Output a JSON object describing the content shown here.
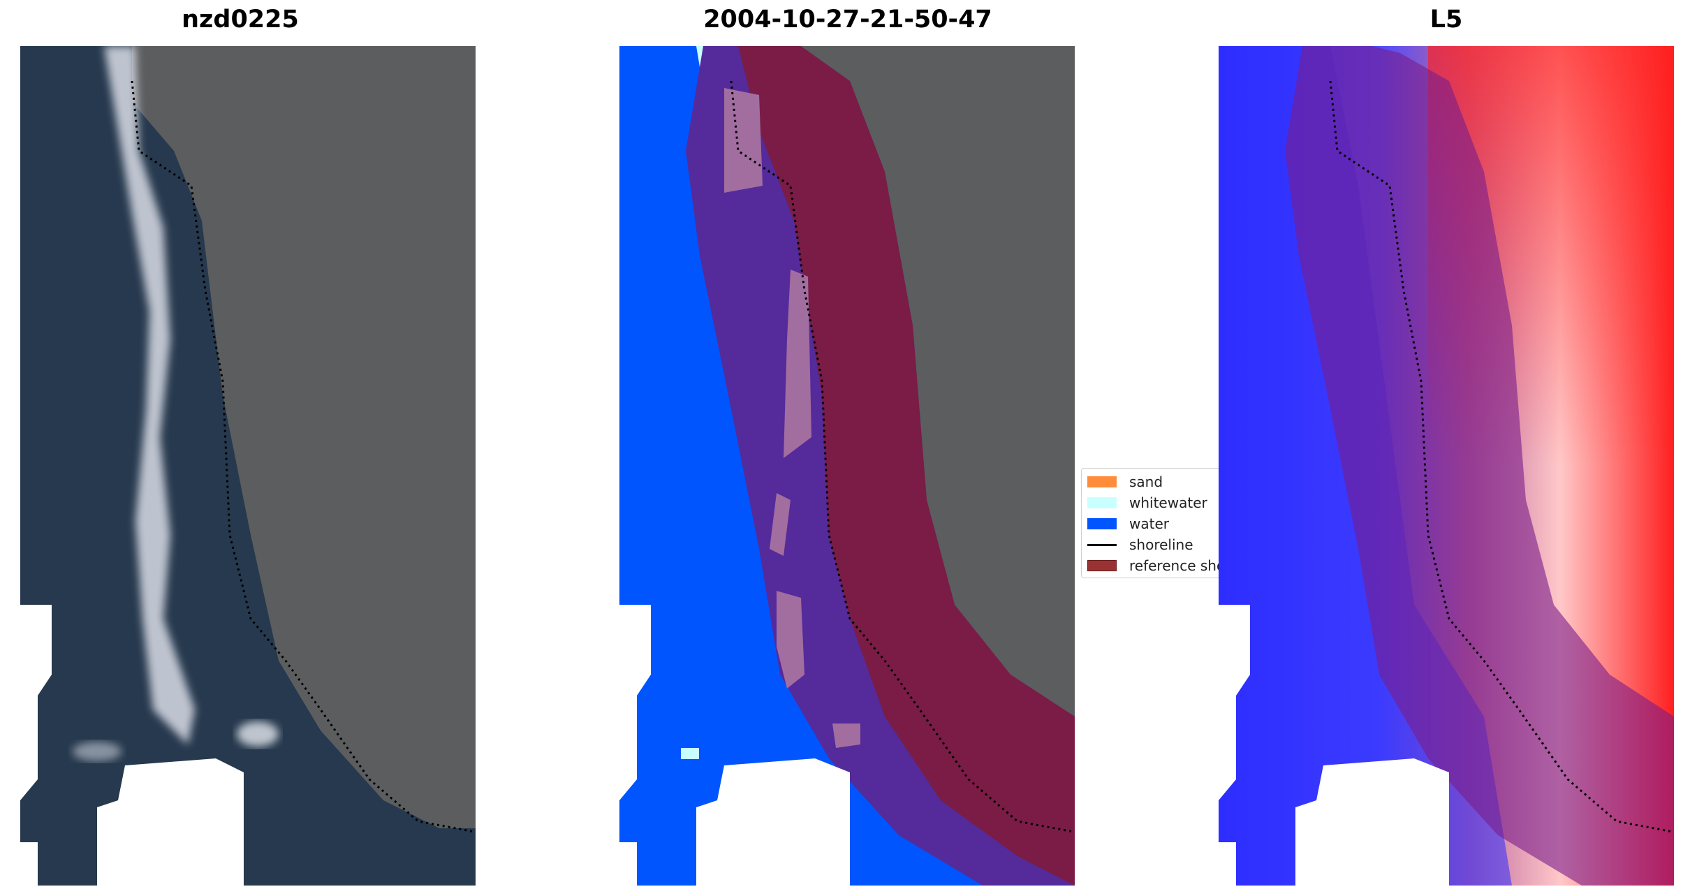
{
  "panels": [
    {
      "title": "nzd0225",
      "kind": "rgb"
    },
    {
      "title": "2004-10-27-21-50-47",
      "kind": "classification"
    },
    {
      "title": "L5",
      "kind": "index"
    }
  ],
  "legend": {
    "items": [
      {
        "label": "sand",
        "color": "#ff8c3a"
      },
      {
        "label": "whitewater",
        "color": "#c8ffff"
      },
      {
        "label": "water",
        "color": "#0055ff"
      },
      {
        "label": "shoreline",
        "color": "#000000"
      },
      {
        "label": "reference shoreline buffer",
        "color": "#993333"
      }
    ]
  },
  "colors": {
    "ocean": "#27394e",
    "land": "#5a5d5f",
    "surf": "#d9dde6",
    "water_class": "#0055ff",
    "whitewater_class": "#c8ffff",
    "buffer": "#7a1c46",
    "buffer_over_water": "#552a9a",
    "index_low": "#2b2bff",
    "index_high": "#ff1f1f"
  }
}
